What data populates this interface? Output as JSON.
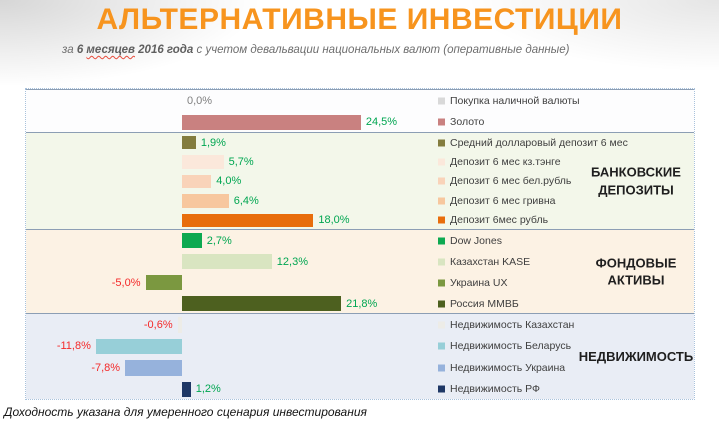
{
  "title": "АЛЬТЕРНАТИВНЫЕ ИНВЕСТИЦИИ",
  "subtitle": {
    "p1": "за ",
    "p2": "6 ",
    "p3": "месяцев",
    "p4": " 2016 года",
    "p5": " с учетом девальвации национальных валют (оперативные данные)"
  },
  "footer": "Доходность указана для умеренного сценария инвестирования",
  "colors": {
    "title_orange": "#F7941E",
    "positive_label": "#00A651",
    "negative_label": "#F42A2A",
    "zero_label": "#7F7F7F",
    "chart_border": "#A9C2DC",
    "section_divider": "#8C9EB4"
  },
  "chart_data": {
    "type": "bar",
    "orientation": "horizontal",
    "unit": "%",
    "value_axis": {
      "visible": false,
      "approx_range": [
        -21,
        35
      ]
    },
    "data_labels": {
      "shown": true,
      "decimal_separator": ","
    },
    "legend_position": "right-of-bars",
    "sections": [
      {
        "group_label": "",
        "bg": "#FDFDFE",
        "items": [
          {
            "label": "Покупка наличной валюты",
            "value": 0.0,
            "display": "0,0%",
            "color": "#D9D9D9"
          },
          {
            "label": "Золото",
            "value": 24.5,
            "display": "24,5%",
            "color": "#C98180"
          }
        ]
      },
      {
        "group_label": "БАНКОВСКИЕ ДЕПОЗИТЫ",
        "bg": "#F3F7EA",
        "items": [
          {
            "label": "Средний долларовый депозит 6 мес",
            "value": 1.9,
            "display": "1,9%",
            "color": "#837C3E"
          },
          {
            "label": "Депозит 6 мес кз.тэнге",
            "value": 5.7,
            "display": "5,7%",
            "color": "#FBE8DB"
          },
          {
            "label": "Депозит 6 мес бел.рубль",
            "value": 4.0,
            "display": "4,0%",
            "color": "#F9D3B9"
          },
          {
            "label": "Депозит 6 мес гривна",
            "value": 6.4,
            "display": "6,4%",
            "color": "#F7C79E"
          },
          {
            "label": "Депозит 6мес рубль",
            "value": 18.0,
            "display": "18,0%",
            "color": "#E86D0C"
          }
        ]
      },
      {
        "group_label": "ФОНДОВЫЕ АКТИВЫ",
        "bg": "#FCF2E4",
        "items": [
          {
            "label": "Dow Jones",
            "value": 2.7,
            "display": "2,7%",
            "color": "#0DA951"
          },
          {
            "label": "Казахстан KASE",
            "value": 12.3,
            "display": "12,3%",
            "color": "#D9E5C1"
          },
          {
            "label": "Украина UX",
            "value": -5.0,
            "display": "-5,0%",
            "color": "#7B9840"
          },
          {
            "label": "Россия ММВБ",
            "value": 21.8,
            "display": "21,8%",
            "color": "#4D601F"
          }
        ]
      },
      {
        "group_label": "НЕДВИЖИМОСТЬ",
        "bg": "#E9EDF5",
        "items": [
          {
            "label": "Недвижимость Казахстан",
            "value": -0.6,
            "display": "-0,6%",
            "color": "#EDECE7"
          },
          {
            "label": "Недвижимость Беларусь",
            "value": -11.8,
            "display": "-11,8%",
            "color": "#97CFD8"
          },
          {
            "label": "Недвижимость Украина",
            "value": -7.8,
            "display": "-7,8%",
            "color": "#96B2DC"
          },
          {
            "label": "Недвижимость РФ",
            "value": 1.2,
            "display": "1,2%",
            "color": "#1E3765"
          }
        ]
      }
    ]
  }
}
